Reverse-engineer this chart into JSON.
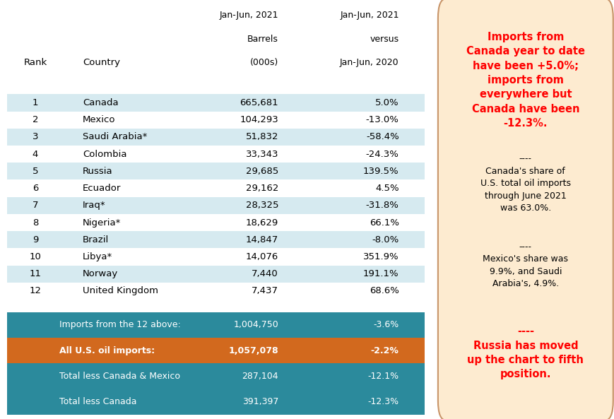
{
  "rows": [
    [
      1,
      "Canada",
      "665,681",
      "5.0%"
    ],
    [
      2,
      "Mexico",
      "104,293",
      "-13.0%"
    ],
    [
      3,
      "Saudi Arabia*",
      "51,832",
      "-58.4%"
    ],
    [
      4,
      "Colombia",
      "33,343",
      "-24.3%"
    ],
    [
      5,
      "Russia",
      "29,685",
      "139.5%"
    ],
    [
      6,
      "Ecuador",
      "29,162",
      "4.5%"
    ],
    [
      7,
      "Iraq*",
      "28,325",
      "-31.8%"
    ],
    [
      8,
      "Nigeria*",
      "18,629",
      "66.1%"
    ],
    [
      9,
      "Brazil",
      "14,847",
      "-8.0%"
    ],
    [
      10,
      "Libya*",
      "14,076",
      "351.9%"
    ],
    [
      11,
      "Norway",
      "7,440",
      "191.1%"
    ],
    [
      12,
      "United Kingdom",
      "7,437",
      "68.6%"
    ]
  ],
  "summary_rows": [
    {
      "label": "Imports from the 12 above:",
      "barrels": "1,004,750",
      "pct": "-3.6%",
      "bg": "#2B8A9C",
      "bold": false
    },
    {
      "label": "All U.S. oil imports:",
      "barrels": "1,057,078",
      "pct": "-2.2%",
      "bg": "#D2691E",
      "bold": true
    },
    {
      "label": "Total less Canada & Mexico",
      "barrels": "287,104",
      "pct": "-12.1%",
      "bg": "#2B8A9C",
      "bold": false
    },
    {
      "label": "Total less Canada",
      "barrels": "391,397",
      "pct": "-12.3%",
      "bg": "#2B8A9C",
      "bold": false
    }
  ],
  "row_color_light": "#D6EAF0",
  "row_color_white": "#FFFFFF",
  "sidebar_bg": "#FDEBD0",
  "sidebar_border": "#C8956A",
  "red": "#FF0000",
  "black": "#000000",
  "white": "#FFFFFF",
  "header_line1": "Jan-Jun, 2021",
  "header_line2_col3": "Barrels",
  "header_line2_col4": "versus",
  "header_line3_col3": "(000s)",
  "header_line3_col4": "Jan-Jun, 2020",
  "col_rank_label": "Rank",
  "col_country_label": "Country",
  "sidebar_para1": "Imports from\nCanada year to date\nhave been +5.0%;\nimports from\neverywhere but\nCanada have been\n-12.3%.",
  "sidebar_para2": "----\nCanada's share of\nU.S. total oil imports\nthrough June 2021\nwas 63.0%.",
  "sidebar_para3": "----\nMexico's share was\n9.9%, and Saudi\nArabia's, 4.9%.",
  "sidebar_para4": "----\nRussia has moved\nup the chart to fifth\nposition."
}
